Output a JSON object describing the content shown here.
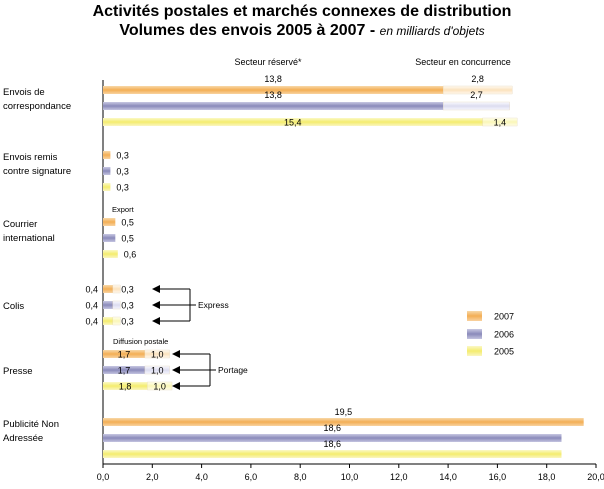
{
  "chart_data": {
    "type": "bar",
    "orientation": "horizontal",
    "stacked": true,
    "title": "Activités postales et marchés connexes de distribution",
    "subtitle": "Volumes des envois 2005 à 2007",
    "unit": "en milliards d'objets",
    "segment_labels": [
      "Secteur réservé*",
      "Secteur en concurrence"
    ],
    "xlim": [
      0,
      20
    ],
    "xticks": [
      "0,0",
      "2,0",
      "4,0",
      "6,0",
      "8,0",
      "10,0",
      "12,0",
      "14,0",
      "16,0",
      "18,0",
      "20,0"
    ],
    "legend": {
      "position": "right",
      "entries": [
        {
          "year": "2007",
          "color": "#f3b25f"
        },
        {
          "year": "2006",
          "color": "#8f8fbf"
        },
        {
          "year": "2005",
          "color": "#f6f08a"
        }
      ]
    },
    "categories": [
      {
        "name_lines": [
          "Envois de",
          "correspondance"
        ],
        "bars": [
          {
            "year": "2007",
            "reserve": 13.8,
            "reserve_label": "13,8",
            "concurrence": 2.8,
            "concurrence_label": "2,8"
          },
          {
            "year": "2006",
            "reserve": 13.8,
            "reserve_label": "13,8",
            "concurrence": 2.7,
            "concurrence_label": "2,7"
          },
          {
            "year": "2005",
            "reserve": 15.4,
            "reserve_label": "15,4",
            "concurrence": 1.4,
            "concurrence_label": "1,4"
          }
        ]
      },
      {
        "name_lines": [
          "Envois remis",
          "contre signature"
        ],
        "bars": [
          {
            "year": "2007",
            "reserve": 0.3,
            "reserve_label": "0,3"
          },
          {
            "year": "2006",
            "reserve": 0.3,
            "reserve_label": "0,3"
          },
          {
            "year": "2005",
            "reserve": 0.3,
            "reserve_label": "0,3"
          }
        ]
      },
      {
        "name_lines": [
          "Courrier",
          "international"
        ],
        "note": "Export",
        "bars": [
          {
            "year": "2007",
            "reserve": 0.5,
            "reserve_label": "0,5"
          },
          {
            "year": "2006",
            "reserve": 0.5,
            "reserve_label": "0,5"
          },
          {
            "year": "2005",
            "reserve": 0.6,
            "reserve_label": "0,6"
          }
        ]
      },
      {
        "name_lines": [
          "Colis"
        ],
        "annotation": "Express",
        "bars": [
          {
            "year": "2007",
            "reserve": 0.4,
            "reserve_label": "0,4",
            "concurrence": 0.3,
            "concurrence_label": "0,3"
          },
          {
            "year": "2006",
            "reserve": 0.4,
            "reserve_label": "0,4",
            "concurrence": 0.3,
            "concurrence_label": "0,3"
          },
          {
            "year": "2005",
            "reserve": 0.4,
            "reserve_label": "0,4",
            "concurrence": 0.3,
            "concurrence_label": "0,3"
          }
        ]
      },
      {
        "name_lines": [
          "Presse"
        ],
        "note": "Diffusion postale",
        "annotation": "Portage",
        "bars": [
          {
            "year": "2007",
            "reserve": 1.7,
            "reserve_label": "1,7",
            "concurrence": 1.0,
            "concurrence_label": "1,0"
          },
          {
            "year": "2006",
            "reserve": 1.7,
            "reserve_label": "1,7",
            "concurrence": 1.0,
            "concurrence_label": "1,0"
          },
          {
            "year": "2005",
            "reserve": 1.8,
            "reserve_label": "1,8",
            "concurrence": 1.0,
            "concurrence_label": "1,0"
          }
        ]
      },
      {
        "name_lines": [
          "Publicité Non",
          "Adressée"
        ],
        "bars": [
          {
            "year": "2007",
            "reserve": 19.5,
            "reserve_label": "19,5"
          },
          {
            "year": "2006",
            "reserve": 18.6,
            "reserve_label": "18,6"
          },
          {
            "year": "2005",
            "reserve": 18.6,
            "reserve_label": "18,6"
          }
        ]
      }
    ]
  }
}
